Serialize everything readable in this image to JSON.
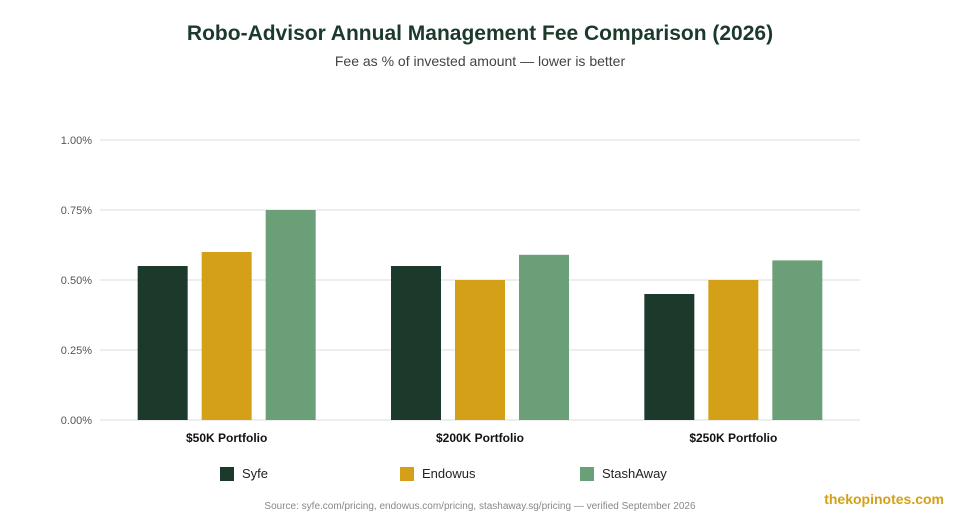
{
  "chart_data": {
    "type": "bar",
    "title": "Robo-Advisor Annual Management Fee Comparison (2026)",
    "subtitle": "Fee as % of invested amount — lower is better",
    "categories": [
      "$50K Portfolio",
      "$200K Portfolio",
      "$250K Portfolio"
    ],
    "series": [
      {
        "name": "Syfe",
        "color": "#1c3a2b",
        "values": [
          0.55,
          0.55,
          0.45
        ]
      },
      {
        "name": "Endowus",
        "color": "#d4a017",
        "values": [
          0.6,
          0.5,
          0.5
        ]
      },
      {
        "name": "StashAway",
        "color": "#6a9f78",
        "values": [
          0.75,
          0.59,
          0.57
        ]
      }
    ],
    "ylim": [
      0,
      1.0
    ],
    "yticks": [
      "0.00%",
      "0.25%",
      "0.50%",
      "0.75%",
      "1.00%"
    ],
    "ytick_values": [
      0,
      0.25,
      0.5,
      0.75,
      1.0
    ],
    "grid": true,
    "legend_position": "bottom",
    "xlabel": "",
    "ylabel": ""
  },
  "source": "Source: syfe.com/pricing, endowus.com/pricing, stashaway.sg/pricing — verified September 2026",
  "watermark": "thekopinotes.com"
}
